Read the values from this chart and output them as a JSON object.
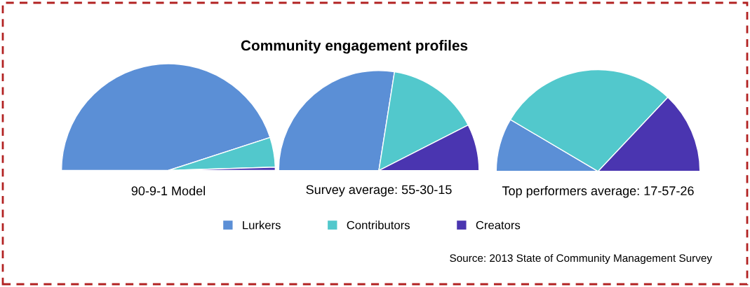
{
  "chart_data": [
    {
      "type": "pie",
      "xlabel": "90-9-1 Model",
      "categories": [
        null,
        null,
        null
      ],
      "values": [
        90,
        9,
        1
      ],
      "colors": [
        "#5b8fd6",
        "#52c8cc",
        "#4a35b0"
      ]
    },
    {
      "type": "pie",
      "title": "Community engagement profiles",
      "xlabel": "Survey average: 55-30-15",
      "categories": [
        "Lurkers",
        "Contributors",
        "Creators"
      ],
      "values": [
        55,
        30,
        15
      ],
      "colors": [
        "#5b8fd6",
        "#52c8cc",
        "#4a35b0"
      ],
      "legend": "bottom"
    },
    {
      "type": "pie",
      "xlabel": "Top performers average: 17-57-26",
      "categories": [
        null,
        null,
        null
      ],
      "values": [
        17,
        57,
        26
      ],
      "colors": [
        "#5b8fd6",
        "#52c8cc",
        "#4a35b0"
      ],
      "annotations": [
        "Source: 2013 State of Community Management Survey"
      ]
    }
  ]
}
